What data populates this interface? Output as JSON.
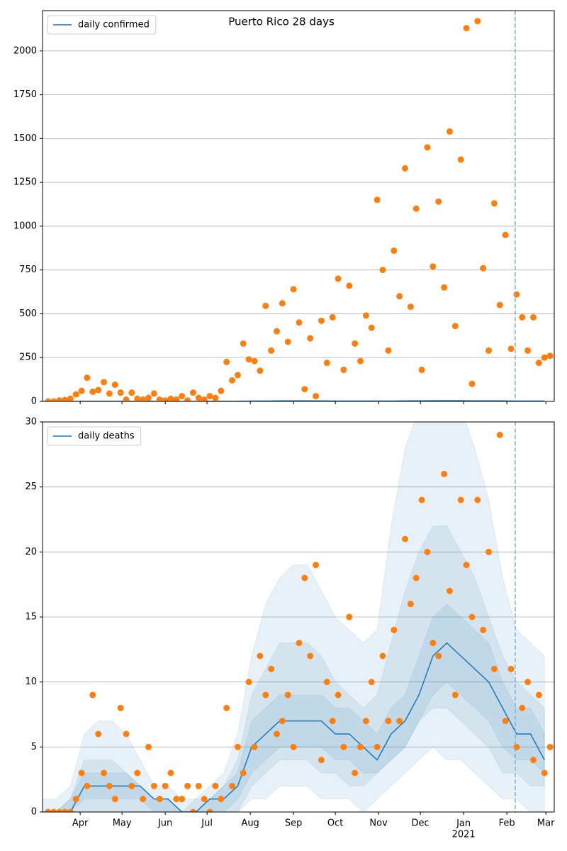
{
  "chart_data": [
    {
      "type": "scatter",
      "title": "Puerto Rico 28 days",
      "x": [
        4,
        8,
        12,
        16,
        20,
        24,
        28,
        32,
        36,
        40,
        44,
        48,
        52,
        56,
        60,
        64,
        68,
        72,
        76,
        80,
        84,
        88,
        92,
        96,
        100,
        104,
        108,
        112,
        116,
        120,
        124,
        128,
        132,
        136,
        140,
        144,
        148,
        152,
        156,
        160,
        164,
        168,
        172,
        176,
        180,
        184,
        188,
        192,
        196,
        200,
        204,
        208,
        212,
        216,
        220,
        224,
        228,
        232,
        236,
        240,
        244,
        248,
        252,
        256,
        260,
        264,
        268,
        272,
        276,
        280,
        284,
        288,
        292,
        296,
        300,
        304,
        308,
        312,
        316,
        320,
        324,
        328,
        332,
        336,
        340,
        344,
        348,
        352,
        356,
        360,
        364
      ],
      "scatter": {
        "color": "#ff7f0e",
        "values": [
          0,
          0,
          5,
          8,
          15,
          40,
          60,
          135,
          55,
          65,
          110,
          45,
          95,
          50,
          10,
          50,
          15,
          10,
          20,
          45,
          10,
          5,
          15,
          10,
          30,
          5,
          50,
          20,
          10,
          30,
          20,
          60,
          225,
          120,
          150,
          330,
          240,
          230,
          175,
          545,
          290,
          400,
          560,
          340,
          640,
          450,
          70,
          360,
          30,
          460,
          220,
          480,
          700,
          180,
          660,
          330,
          230,
          490,
          420,
          1150,
          750,
          290,
          860,
          600,
          1330,
          540,
          1100,
          180,
          1450,
          770,
          1140,
          650,
          1540,
          430,
          1380,
          2130,
          100,
          2170,
          760,
          290,
          1130,
          550,
          950,
          300,
          610,
          480,
          290,
          480,
          220,
          250,
          260
        ]
      },
      "line": {
        "name": "daily confirmed",
        "color": "#1f77b4",
        "x": [
          0,
          10,
          20,
          30,
          40,
          50,
          60,
          70,
          80,
          90,
          100,
          110,
          120,
          130,
          140,
          150,
          160,
          170,
          180,
          190,
          200,
          210,
          220,
          230,
          240,
          250,
          260,
          270,
          280,
          290,
          300,
          310,
          320,
          330,
          340,
          350,
          360
        ],
        "values": [
          0,
          0,
          0,
          1,
          1,
          1,
          1,
          1,
          1,
          1,
          0,
          0,
          1,
          1,
          1,
          2,
          2,
          3,
          3,
          3,
          3,
          2,
          2,
          2,
          2,
          2,
          3,
          3,
          4,
          4,
          4,
          3,
          3,
          3,
          2,
          2,
          2
        ]
      },
      "ylim": [
        0,
        2230
      ],
      "yticks": [
        0,
        250,
        500,
        750,
        1000,
        1250,
        1500,
        1750,
        2000
      ],
      "grid": true,
      "legend": "upper left",
      "vline_x": 339,
      "vline_color": "#7fb2d5"
    },
    {
      "type": "scatter",
      "x": [
        4,
        8,
        12,
        16,
        20,
        24,
        28,
        32,
        36,
        40,
        44,
        48,
        52,
        56,
        60,
        64,
        68,
        72,
        76,
        80,
        84,
        88,
        92,
        96,
        100,
        104,
        108,
        112,
        116,
        120,
        124,
        128,
        132,
        136,
        140,
        144,
        148,
        152,
        156,
        160,
        164,
        168,
        172,
        176,
        180,
        184,
        188,
        192,
        196,
        200,
        204,
        208,
        212,
        216,
        220,
        224,
        228,
        232,
        236,
        240,
        244,
        248,
        252,
        256,
        260,
        264,
        268,
        272,
        276,
        280,
        284,
        288,
        292,
        296,
        300,
        304,
        308,
        312,
        316,
        320,
        324,
        328,
        332,
        336,
        340,
        344,
        348,
        352,
        356,
        360,
        364
      ],
      "scatter": {
        "color": "#ff7f0e",
        "values": [
          0,
          0,
          0,
          0,
          0,
          1,
          3,
          2,
          9,
          6,
          3,
          2,
          1,
          8,
          6,
          2,
          3,
          1,
          5,
          2,
          1,
          2,
          3,
          1,
          1,
          2,
          0,
          2,
          1,
          0,
          2,
          1,
          8,
          2,
          5,
          3,
          10,
          5,
          12,
          9,
          11,
          6,
          7,
          9,
          5,
          13,
          18,
          12,
          19,
          4,
          10,
          7,
          9,
          5,
          15,
          3,
          5,
          7,
          10,
          5,
          12,
          7,
          14,
          7,
          21,
          16,
          18,
          24,
          20,
          13,
          12,
          26,
          17,
          9,
          24,
          19,
          15,
          24,
          14,
          20,
          11,
          29,
          7,
          11,
          5,
          8,
          10,
          4,
          9,
          3,
          5
        ]
      },
      "line": {
        "name": "daily deaths",
        "color": "#1f77b4",
        "x": [
          0,
          10,
          20,
          30,
          40,
          50,
          60,
          70,
          80,
          90,
          100,
          110,
          120,
          130,
          140,
          150,
          160,
          170,
          180,
          190,
          200,
          210,
          220,
          230,
          240,
          250,
          260,
          270,
          280,
          290,
          300,
          310,
          320,
          330,
          340,
          350,
          360
        ],
        "values": [
          0,
          0,
          0,
          2,
          2,
          2,
          2,
          2,
          1,
          1,
          0,
          0,
          1,
          1,
          2,
          5,
          6,
          7,
          7,
          7,
          7,
          6,
          6,
          5,
          4,
          6,
          7,
          9,
          12,
          13,
          12,
          11,
          10,
          8,
          6,
          6,
          4
        ]
      },
      "band_color": "#1f77b4",
      "bands": [
        {
          "lower": [
            0,
            0,
            0,
            0,
            0,
            0,
            0,
            0,
            0,
            0,
            0,
            0,
            0,
            0,
            0,
            1,
            1,
            2,
            2,
            2,
            1,
            1,
            1,
            0,
            1,
            2,
            3,
            4,
            5,
            4,
            4,
            3,
            2,
            1,
            1,
            0,
            0
          ],
          "upper": [
            1,
            1,
            2,
            6,
            7,
            7,
            6,
            4,
            2,
            2,
            1,
            1,
            2,
            3,
            6,
            12,
            16,
            18,
            19,
            19,
            17,
            15,
            14,
            13,
            14,
            22,
            28,
            31,
            32,
            32,
            31,
            28,
            24,
            18,
            14,
            13,
            12
          ]
        },
        {
          "lower": [
            0,
            0,
            0,
            0,
            0,
            0,
            0,
            0,
            0,
            0,
            0,
            0,
            0,
            0,
            0,
            2,
            3,
            4,
            4,
            4,
            3,
            3,
            2,
            2,
            3,
            4,
            5,
            7,
            8,
            8,
            7,
            6,
            5,
            3,
            3,
            2,
            2
          ],
          "upper": [
            0,
            0,
            1,
            4,
            4,
            4,
            3,
            2,
            1,
            1,
            0,
            1,
            1,
            2,
            4,
            9,
            11,
            13,
            13,
            13,
            12,
            10,
            9,
            8,
            9,
            13,
            17,
            20,
            22,
            22,
            20,
            18,
            15,
            12,
            10,
            9,
            8
          ]
        },
        {
          "lower": [
            0,
            0,
            0,
            1,
            1,
            1,
            1,
            1,
            0,
            0,
            0,
            0,
            0,
            0,
            1,
            3,
            4,
            5,
            5,
            5,
            5,
            4,
            4,
            3,
            3,
            4,
            5,
            7,
            9,
            10,
            9,
            8,
            7,
            5,
            4,
            4,
            3
          ],
          "upper": [
            0,
            0,
            1,
            3,
            3,
            3,
            3,
            2,
            1,
            1,
            0,
            0,
            1,
            2,
            3,
            7,
            8,
            9,
            9,
            9,
            9,
            8,
            8,
            7,
            6,
            8,
            9,
            12,
            15,
            16,
            15,
            14,
            13,
            10,
            8,
            8,
            6
          ]
        }
      ],
      "xlim": [
        0,
        367
      ],
      "xticks": [
        {
          "value": 27,
          "label": "Apr"
        },
        {
          "value": 57,
          "label": "May"
        },
        {
          "value": 88,
          "label": "Jun"
        },
        {
          "value": 118,
          "label": "Jul"
        },
        {
          "value": 149,
          "label": "Aug"
        },
        {
          "value": 180,
          "label": "Sep"
        },
        {
          "value": 210,
          "label": "Oct"
        },
        {
          "value": 241,
          "label": "Nov"
        },
        {
          "value": 271,
          "label": "Dec"
        },
        {
          "value": 302,
          "label": "Jan\n2021"
        },
        {
          "value": 333,
          "label": "Feb"
        },
        {
          "value": 361,
          "label": "Mar"
        }
      ],
      "ylim": [
        0,
        30
      ],
      "yticks": [
        0,
        5,
        10,
        15,
        20,
        25,
        30
      ],
      "grid": true,
      "legend": "upper left",
      "vline_x": 339,
      "vline_color": "#7fb2d5"
    }
  ]
}
